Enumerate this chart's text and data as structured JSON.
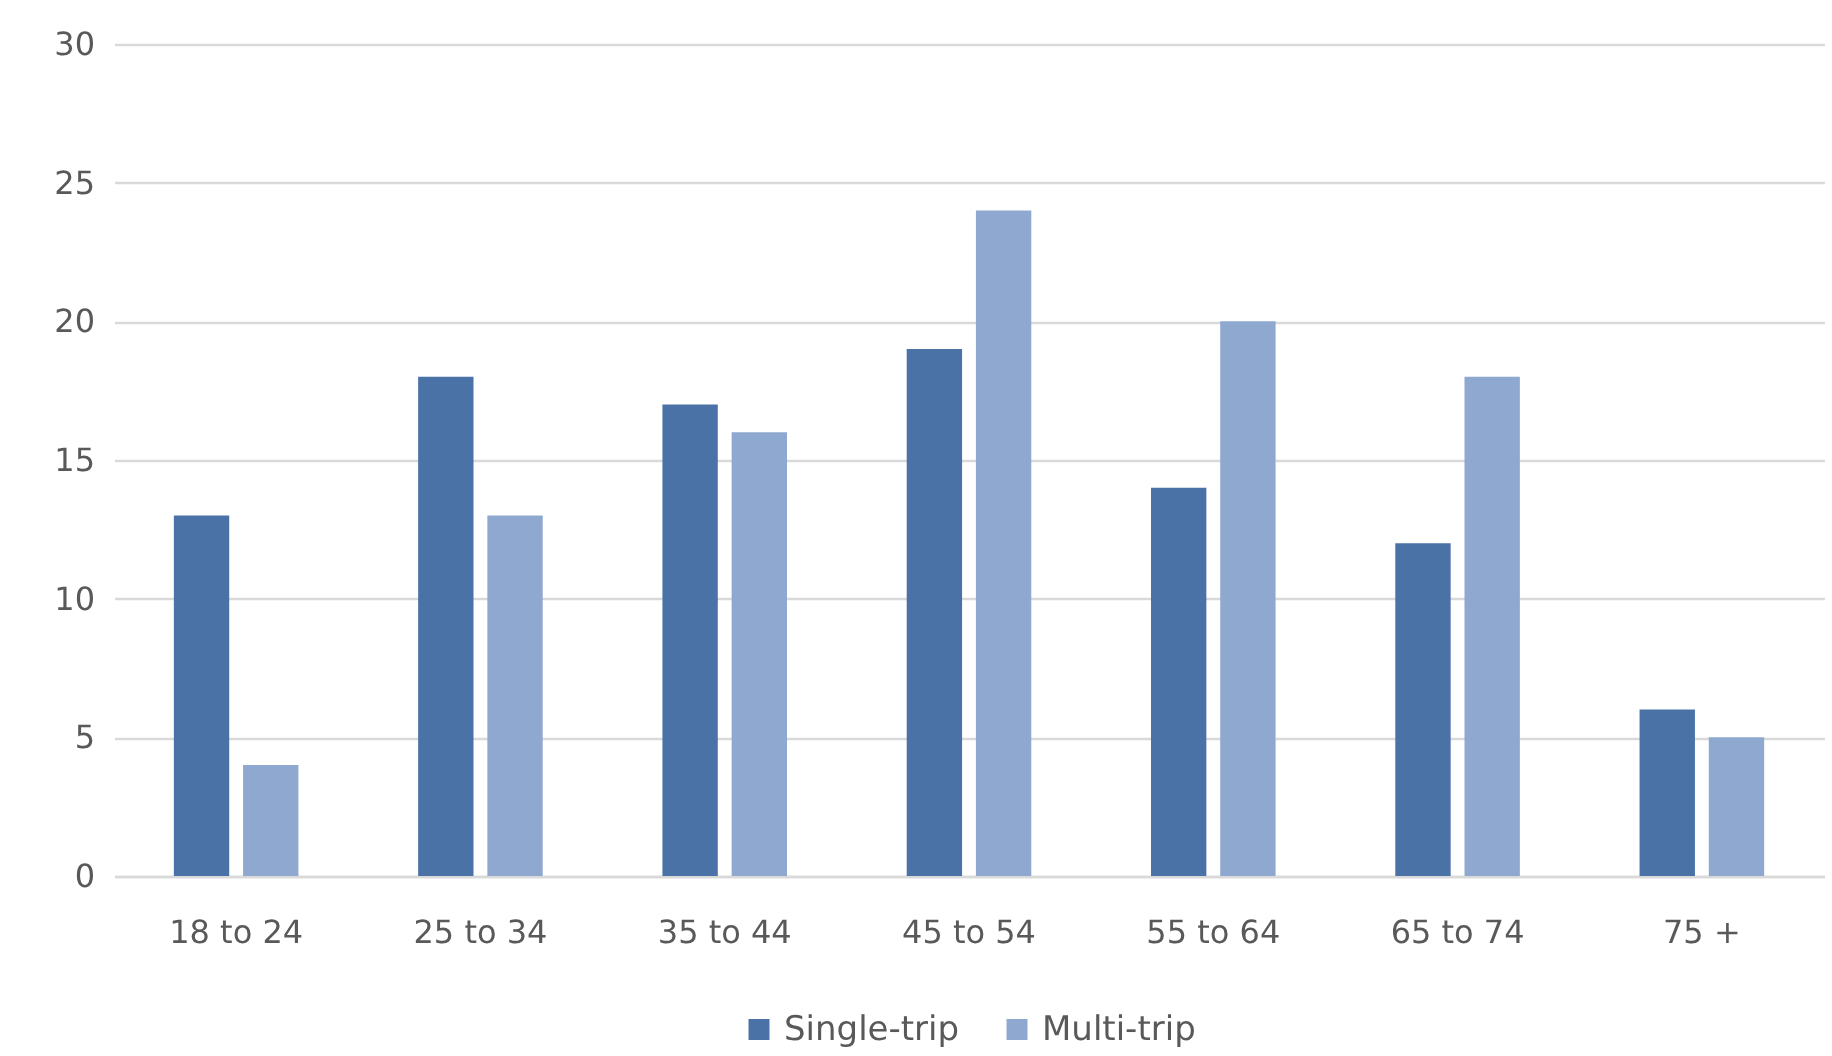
{
  "chart_data": {
    "type": "bar",
    "categories": [
      "18 to 24",
      "25 to 34",
      "35 to 44",
      "45 to 54",
      "55 to 64",
      "65 to 74",
      "75 +"
    ],
    "series": [
      {
        "name": "Single-trip",
        "color": "#4a72a6",
        "values": [
          13,
          18,
          17,
          19,
          14,
          12,
          6
        ]
      },
      {
        "name": "Multi-trip",
        "color": "#8fa8cf",
        "values": [
          4,
          13,
          16,
          24,
          20,
          18,
          5
        ]
      }
    ],
    "ylim": [
      0,
      30
    ],
    "yticks": [
      0,
      5,
      10,
      15,
      20,
      25,
      30
    ],
    "grid": "y",
    "legend": "bottom"
  }
}
